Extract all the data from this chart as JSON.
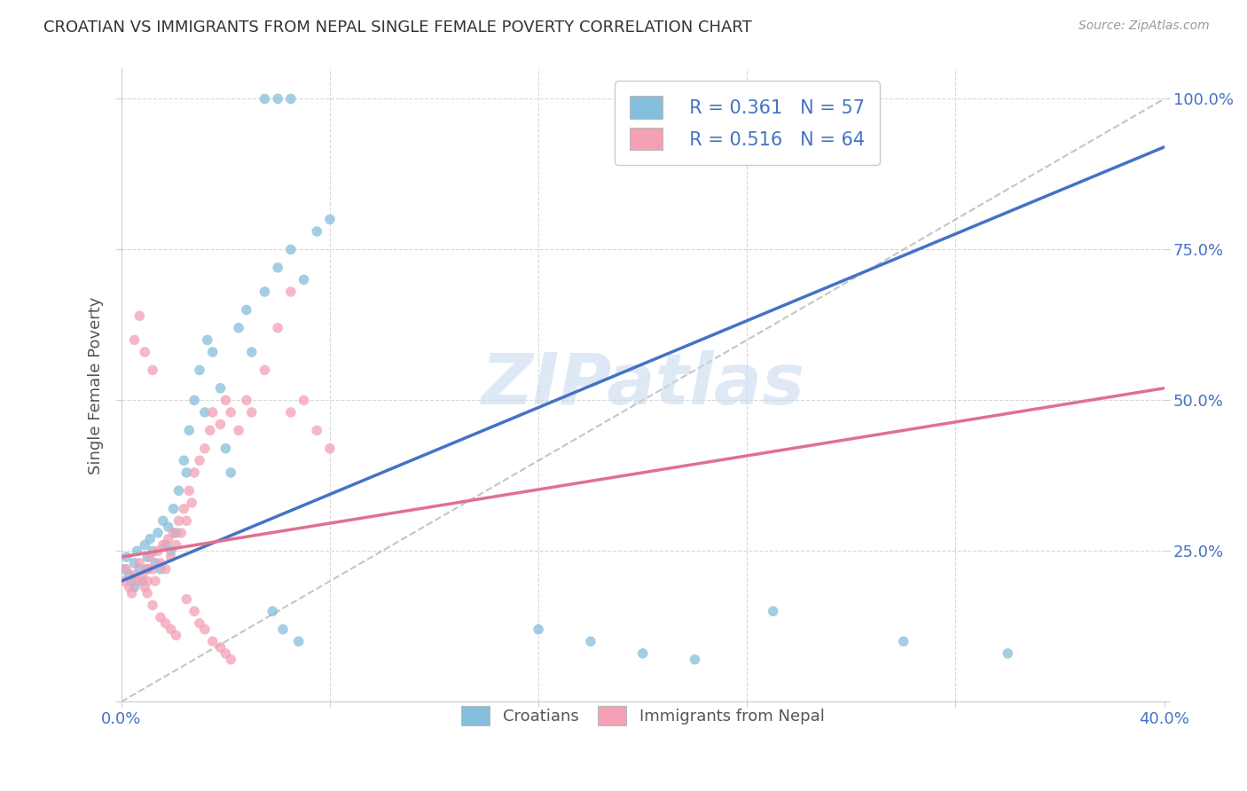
{
  "title": "CROATIAN VS IMMIGRANTS FROM NEPAL SINGLE FEMALE POVERTY CORRELATION CHART",
  "source": "Source: ZipAtlas.com",
  "ylabel_label": "Single Female Poverty",
  "x_min": 0.0,
  "x_max": 0.4,
  "y_min": 0.0,
  "y_max": 1.05,
  "legend_r1": "R = 0.361",
  "legend_n1": "N = 57",
  "legend_r2": "R = 0.516",
  "legend_n2": "N = 64",
  "color_blue": "#85bedc",
  "color_pink": "#f4a0b5",
  "color_line_blue": "#4472c4",
  "color_line_pink": "#e07090",
  "color_diagonal": "#bbbbbb",
  "color_axis_labels": "#4472c4",
  "color_grid": "#d8d8d8",
  "scatter_blue_x": [
    0.001,
    0.002,
    0.003,
    0.004,
    0.005,
    0.005,
    0.006,
    0.007,
    0.008,
    0.009,
    0.01,
    0.01,
    0.011,
    0.012,
    0.013,
    0.014,
    0.015,
    0.016,
    0.017,
    0.018,
    0.019,
    0.02,
    0.021,
    0.022,
    0.024,
    0.025,
    0.026,
    0.028,
    0.03,
    0.032,
    0.033,
    0.035,
    0.038,
    0.04,
    0.042,
    0.045,
    0.048,
    0.05,
    0.055,
    0.06,
    0.065,
    0.07,
    0.075,
    0.08,
    0.058,
    0.062,
    0.068,
    0.16,
    0.18,
    0.2,
    0.22,
    0.25,
    0.3,
    0.34,
    0.055,
    0.06,
    0.065
  ],
  "scatter_blue_y": [
    0.22,
    0.24,
    0.21,
    0.2,
    0.23,
    0.19,
    0.25,
    0.22,
    0.2,
    0.26,
    0.24,
    0.22,
    0.27,
    0.25,
    0.23,
    0.28,
    0.22,
    0.3,
    0.26,
    0.29,
    0.25,
    0.32,
    0.28,
    0.35,
    0.4,
    0.38,
    0.45,
    0.5,
    0.55,
    0.48,
    0.6,
    0.58,
    0.52,
    0.42,
    0.38,
    0.62,
    0.65,
    0.58,
    0.68,
    0.72,
    0.75,
    0.7,
    0.78,
    0.8,
    0.15,
    0.12,
    0.1,
    0.12,
    0.1,
    0.08,
    0.07,
    0.15,
    0.1,
    0.08,
    1.0,
    1.0,
    1.0
  ],
  "scatter_pink_x": [
    0.001,
    0.002,
    0.003,
    0.004,
    0.005,
    0.006,
    0.007,
    0.008,
    0.009,
    0.01,
    0.01,
    0.011,
    0.012,
    0.013,
    0.014,
    0.015,
    0.016,
    0.017,
    0.018,
    0.019,
    0.02,
    0.021,
    0.022,
    0.023,
    0.024,
    0.025,
    0.026,
    0.027,
    0.028,
    0.03,
    0.032,
    0.034,
    0.035,
    0.038,
    0.04,
    0.042,
    0.045,
    0.048,
    0.05,
    0.055,
    0.06,
    0.065,
    0.065,
    0.07,
    0.075,
    0.08,
    0.01,
    0.012,
    0.015,
    0.017,
    0.019,
    0.021,
    0.025,
    0.028,
    0.03,
    0.032,
    0.035,
    0.038,
    0.04,
    0.042,
    0.005,
    0.007,
    0.009,
    0.012
  ],
  "scatter_pink_y": [
    0.2,
    0.22,
    0.19,
    0.18,
    0.21,
    0.2,
    0.23,
    0.21,
    0.19,
    0.22,
    0.2,
    0.24,
    0.22,
    0.2,
    0.25,
    0.23,
    0.26,
    0.22,
    0.27,
    0.24,
    0.28,
    0.26,
    0.3,
    0.28,
    0.32,
    0.3,
    0.35,
    0.33,
    0.38,
    0.4,
    0.42,
    0.45,
    0.48,
    0.46,
    0.5,
    0.48,
    0.45,
    0.5,
    0.48,
    0.55,
    0.62,
    0.68,
    0.48,
    0.5,
    0.45,
    0.42,
    0.18,
    0.16,
    0.14,
    0.13,
    0.12,
    0.11,
    0.17,
    0.15,
    0.13,
    0.12,
    0.1,
    0.09,
    0.08,
    0.07,
    0.6,
    0.64,
    0.58,
    0.55
  ],
  "blue_line_x": [
    0.0,
    0.4
  ],
  "blue_line_y": [
    0.2,
    0.92
  ],
  "pink_line_x": [
    0.0,
    0.4
  ],
  "pink_line_y": [
    0.24,
    0.52
  ],
  "diag_line_x": [
    0.0,
    0.4
  ],
  "diag_line_y": [
    0.0,
    1.0
  ],
  "watermark": "ZIPatlas"
}
